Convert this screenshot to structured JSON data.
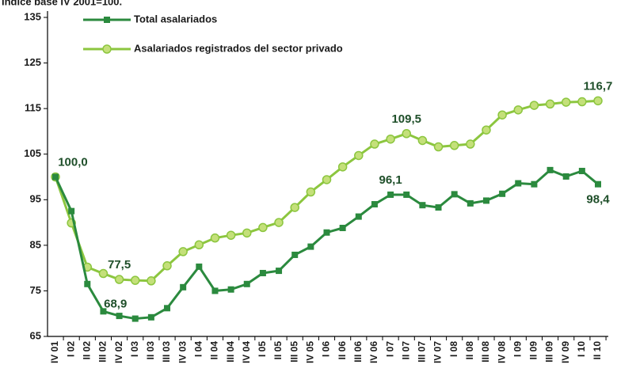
{
  "chart_data": {
    "type": "line",
    "title": "Índice base IV 2001=100.",
    "categories": [
      "IV 01",
      "I 02",
      "II 02",
      "III 02",
      "IV 02",
      "I 03",
      "II 03",
      "III 03",
      "IV 03",
      "I 04",
      "II 04",
      "III 04",
      "IV 04",
      "I 05",
      "II 05",
      "III 05",
      "IV 05",
      "I 06",
      "II 06",
      "III 06",
      "IV 06",
      "I 07",
      "II 07",
      "III 07",
      "IV 07",
      "I 08",
      "II 08",
      "III 08",
      "IV 08",
      "I 09",
      "II 09",
      "III 09",
      "IV 09",
      "I 10",
      "II 10"
    ],
    "series": [
      {
        "name": "Total asalariados",
        "color": "#2b8a3e",
        "marker": "square",
        "values": [
          100.0,
          92.5,
          76.5,
          70.5,
          69.5,
          68.9,
          69.2,
          71.2,
          75.8,
          80.3,
          75.0,
          75.3,
          76.5,
          78.9,
          79.4,
          82.9,
          84.7,
          87.8,
          88.8,
          91.3,
          94.0,
          96.1,
          96.1,
          93.8,
          93.3,
          96.2,
          94.2,
          94.8,
          96.3,
          98.6,
          98.4,
          101.5,
          100.1,
          101.3,
          98.4
        ],
        "value_labels": [
          null,
          null,
          null,
          null,
          null,
          "68,9",
          null,
          null,
          null,
          null,
          null,
          null,
          null,
          null,
          null,
          null,
          null,
          null,
          null,
          null,
          null,
          "96,1",
          null,
          null,
          null,
          null,
          null,
          null,
          null,
          null,
          null,
          null,
          null,
          null,
          "98,4"
        ]
      },
      {
        "name": "Asalariados registrados del sector privado",
        "color": "#8cc63f",
        "marker": "circle",
        "values": [
          100.0,
          89.9,
          80.2,
          78.8,
          77.5,
          77.3,
          77.2,
          80.5,
          83.6,
          85.1,
          86.6,
          87.2,
          87.7,
          88.9,
          90.0,
          93.3,
          96.7,
          99.4,
          102.2,
          104.7,
          107.2,
          108.3,
          109.5,
          108.0,
          106.6,
          106.9,
          107.2,
          110.3,
          113.6,
          114.7,
          115.7,
          116.0,
          116.4,
          116.5,
          116.7
        ],
        "value_labels": [
          "100,0",
          null,
          null,
          null,
          "77,5",
          null,
          null,
          null,
          null,
          null,
          null,
          null,
          null,
          null,
          null,
          null,
          null,
          null,
          null,
          null,
          null,
          null,
          "109,5",
          null,
          null,
          null,
          null,
          null,
          null,
          null,
          null,
          null,
          null,
          null,
          "116,7"
        ]
      }
    ],
    "ylim": [
      65,
      135
    ],
    "yticks": [
      65,
      75,
      85,
      95,
      105,
      115,
      125,
      135
    ],
    "grid": false,
    "legend": "top-left"
  }
}
